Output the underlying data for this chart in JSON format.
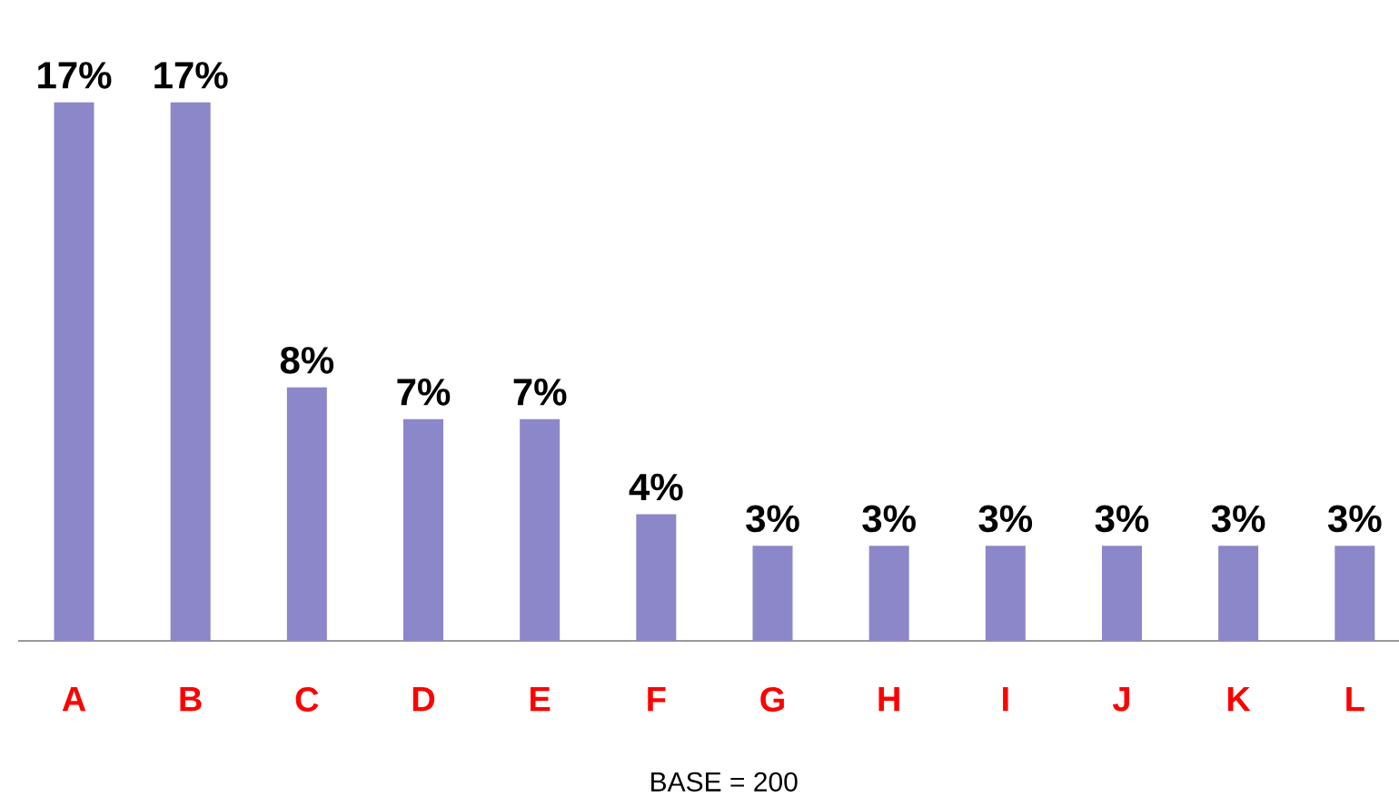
{
  "chart_data": {
    "type": "bar",
    "categories": [
      "A",
      "B",
      "C",
      "D",
      "E",
      "F",
      "G",
      "H",
      "I",
      "J",
      "K",
      "L"
    ],
    "values": [
      17,
      17,
      8,
      7,
      7,
      4,
      3,
      3,
      3,
      3,
      3,
      3
    ],
    "value_labels": [
      "17%",
      "17%",
      "8%",
      "7%",
      "7%",
      "4%",
      "3%",
      "3%",
      "3%",
      "3%",
      "3%",
      "3%"
    ],
    "color": "#8c87c9",
    "annotations": [
      "BASE = 200"
    ]
  }
}
